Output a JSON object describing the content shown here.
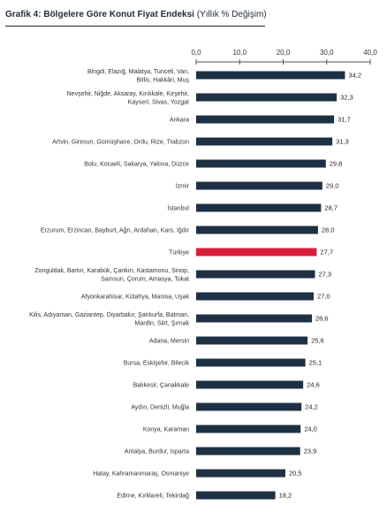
{
  "title": {
    "bold": "Grafik 4: Bölgelere Göre Konut Fiyat Endeksi",
    "normal": "(Yıllık % Değişim)"
  },
  "chart_data": {
    "type": "bar",
    "orientation": "horizontal",
    "title": "Grafik 4: Bölgelere Göre Konut Fiyat Endeksi (Yıllık % Değişim)",
    "xlim": [
      0,
      40
    ],
    "x_ticks": [
      "0,0",
      "10,0",
      "20,0",
      "30,0",
      "40,0"
    ],
    "x_tick_values": [
      0,
      10,
      20,
      30,
      40
    ],
    "axis_position": "top",
    "grid": false,
    "colors": {
      "default": "#1e3044",
      "highlight": "#d91c3a"
    },
    "categories": [
      "Bingöl, Elazığ, Malatya, Tunceli, Van, Bitlis, Hakkâri, Muş",
      "Nevşehir, Niğde, Aksaray, Kırıkkale, Kırşehir, Kayseri, Sivas, Yozgat",
      "Ankara",
      "Artvin, Giresun, Gümüşhane, Ordu, Rize, Trabzon",
      "Bolu, Kocaeli, Sakarya, Yalova, Düzce",
      "İzmir",
      "İstanbul",
      "Erzurum, Erzincan, Bayburt, Ağrı, Ardahan, Kars, Iğdır",
      "Türkiye",
      "Zonguldak, Bartın, Karabük, Çankırı, Kastamonu, Sinop, Samsun, Çorum, Amasya, Tokat",
      "Afyonkarahisar, Kütahya, Manisa, Uşak",
      "Kilis, Adıyaman, Gaziantep, Diyarbakır, Şanlıurfa, Batman, Mardin, Siirt, Şırnak",
      "Adana, Mersin",
      "Bursa, Eskişehir, Bilecik",
      "Balıkesir, Çanakkale",
      "Aydın, Denizli, Muğla",
      "Konya, Karaman",
      "Antalya, Burdur, Isparta",
      "Hatay, Kahramanmaraş, Osmaniye",
      "Edirne, Kırklareli, Tekirdağ"
    ],
    "category_lines": [
      [
        "Bingöl, Elazığ, Malatya, Tunceli, Van,",
        "Bitlis, Hakkâri, Muş"
      ],
      [
        "Nevşehir, Niğde, Aksaray, Kırıkkale, Kırşehir,",
        "Kayseri, Sivas, Yozgat"
      ],
      [
        "Ankara"
      ],
      [
        "Artvin, Giresun, Gümüşhane, Ordu, Rize, Trabzon"
      ],
      [
        "Bolu, Kocaeli, Sakarya, Yalova, Düzce"
      ],
      [
        "İzmir"
      ],
      [
        "İstanbul"
      ],
      [
        "Erzurum, Erzincan, Bayburt, Ağrı, Ardahan, Kars, Iğdır"
      ],
      [
        "Türkiye"
      ],
      [
        "Zonguldak, Bartın, Karabük, Çankırı, Kastamonu, Sinop,",
        "Samsun, Çorum, Amasya, Tokat"
      ],
      [
        "Afyonkarahisar, Kütahya, Manisa, Uşak"
      ],
      [
        "Kilis, Adıyaman, Gaziantep, Diyarbakır, Şanlıurfa, Batman,",
        "Mardin, Siirt, Şırnak"
      ],
      [
        "Adana, Mersin"
      ],
      [
        "Bursa, Eskişehir, Bilecik"
      ],
      [
        "Balıkesir, Çanakkale"
      ],
      [
        "Aydın, Denizli, Muğla"
      ],
      [
        "Konya, Karaman"
      ],
      [
        "Antalya, Burdur, Isparta"
      ],
      [
        "Hatay, Kahramanmaraş, Osmaniye"
      ],
      [
        "Edirne, Kırklareli, Tekirdağ"
      ]
    ],
    "values": [
      34.2,
      32.3,
      31.7,
      31.3,
      29.8,
      29.0,
      28.7,
      28.0,
      27.7,
      27.3,
      27.0,
      26.6,
      25.6,
      25.1,
      24.6,
      24.2,
      24.0,
      23.9,
      20.5,
      18.2
    ],
    "value_labels": [
      "34,2",
      "32,3",
      "31,7",
      "31,3",
      "29,8",
      "29,0",
      "28,7",
      "28,0",
      "27,7",
      "27,3",
      "27,0",
      "26,6",
      "25,6",
      "25,1",
      "24,6",
      "24,2",
      "24,0",
      "23,9",
      "20,5",
      "18,2"
    ],
    "highlight_category": "Türkiye"
  }
}
